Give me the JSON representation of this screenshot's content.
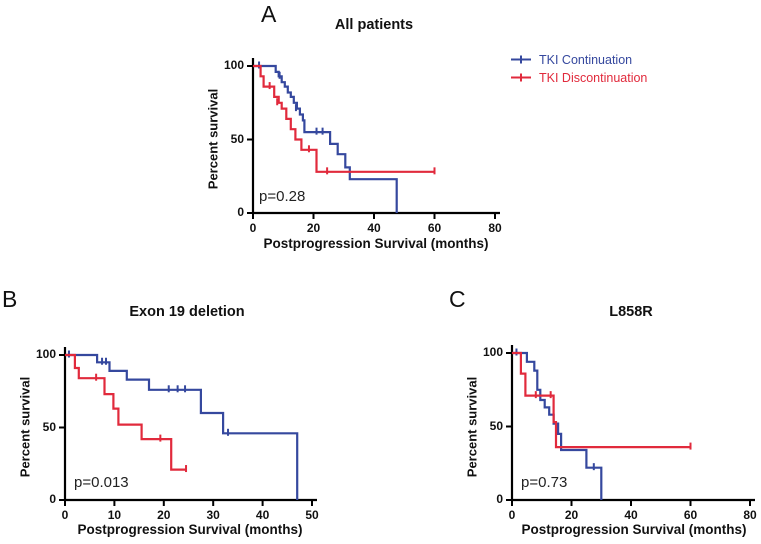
{
  "figure": {
    "colors": {
      "continuation": "#35489E",
      "discontinuation": "#E12A3C",
      "axis": "#000000",
      "background": "#ffffff"
    },
    "legend": {
      "items": [
        {
          "label": "TKI Continuation",
          "color": "#35489E",
          "marker": "km-line-with-censor-tick"
        },
        {
          "label": "TKI Discontinuation",
          "color": "#E12A3C",
          "marker": "km-line-with-censor-tick"
        }
      ]
    }
  },
  "chart_data": [
    {
      "type": "line",
      "subtype": "kaplan-meier-step",
      "panel_label": "A",
      "title": "All patients",
      "xlabel": "Postprogression Survival (months)",
      "ylabel": "Percent survival",
      "p_value": "p=0.28",
      "xlim": [
        0,
        80
      ],
      "ylim": [
        0,
        100
      ],
      "xticks": [
        0,
        20,
        40,
        60,
        80
      ],
      "yticks": [
        0,
        50,
        100
      ],
      "grid": false,
      "legend_position": "upper-right-outside",
      "series": [
        {
          "name": "TKI Continuation",
          "color": "#35489E",
          "steps": [
            [
              0,
              100
            ],
            [
              7.5,
              96
            ],
            [
              8.5,
              93
            ],
            [
              9.5,
              89
            ],
            [
              10.5,
              86
            ],
            [
              11.5,
              82
            ],
            [
              12.5,
              79
            ],
            [
              13.5,
              75
            ],
            [
              14.5,
              71
            ],
            [
              15.5,
              67
            ],
            [
              16.5,
              63
            ],
            [
              17,
              55
            ],
            [
              25.5,
              47
            ],
            [
              28,
              40
            ],
            [
              30.5,
              31
            ],
            [
              32,
              23
            ],
            [
              47.5,
              0
            ]
          ],
          "end": 47.5,
          "censors": [
            [
              2,
              100
            ],
            [
              8.8,
              93
            ],
            [
              14.2,
              71
            ],
            [
              21,
              55
            ],
            [
              23,
              55
            ]
          ]
        },
        {
          "name": "TKI Discontinuation",
          "color": "#E12A3C",
          "steps": [
            [
              0,
              100
            ],
            [
              2.5,
              93
            ],
            [
              3.5,
              86
            ],
            [
              7,
              79
            ],
            [
              8.5,
              75
            ],
            [
              9.5,
              71
            ],
            [
              11,
              64
            ],
            [
              12.5,
              57
            ],
            [
              14,
              50
            ],
            [
              16,
              43
            ],
            [
              21,
              28
            ]
          ],
          "end": 60,
          "censors": [
            [
              5.5,
              86
            ],
            [
              8,
              75
            ],
            [
              18.5,
              43
            ],
            [
              24.5,
              28
            ],
            [
              60,
              28
            ]
          ]
        }
      ]
    },
    {
      "type": "line",
      "subtype": "kaplan-meier-step",
      "panel_label": "B",
      "title": "Exon 19 deletion",
      "xlabel": "Postprogression Survival (months)",
      "ylabel": "Percent survival",
      "p_value": "p=0.013",
      "xlim": [
        0,
        50
      ],
      "ylim": [
        0,
        100
      ],
      "xticks": [
        0,
        10,
        20,
        30,
        40,
        50
      ],
      "yticks": [
        0,
        50,
        100
      ],
      "grid": false,
      "legend_position": "none",
      "series": [
        {
          "name": "TKI Continuation",
          "color": "#35489E",
          "steps": [
            [
              0,
              100
            ],
            [
              6.5,
              95
            ],
            [
              9,
              89
            ],
            [
              12.5,
              83
            ],
            [
              17,
              76
            ],
            [
              27.5,
              60
            ],
            [
              32,
              46
            ],
            [
              47,
              0
            ]
          ],
          "end": 47,
          "censors": [
            [
              0.8,
              100
            ],
            [
              7.5,
              95
            ],
            [
              8.3,
              95
            ],
            [
              21,
              76
            ],
            [
              22.8,
              76
            ],
            [
              24.3,
              76
            ],
            [
              33,
              46
            ]
          ]
        },
        {
          "name": "TKI Discontinuation",
          "color": "#E12A3C",
          "steps": [
            [
              0,
              100
            ],
            [
              2,
              91
            ],
            [
              2.8,
              84
            ],
            [
              8,
              73
            ],
            [
              9.8,
              63
            ],
            [
              10.8,
              52
            ],
            [
              15.5,
              42
            ],
            [
              21.5,
              21
            ]
          ],
          "end": 24.5,
          "censors": [
            [
              6.3,
              84
            ],
            [
              19.3,
              42
            ],
            [
              24.5,
              21
            ]
          ]
        }
      ]
    },
    {
      "type": "line",
      "subtype": "kaplan-meier-step",
      "panel_label": "C",
      "title": "L858R",
      "xlabel": "Postprogression Survival (months)",
      "ylabel": "Percent survival",
      "p_value": "p=0.73",
      "xlim": [
        0,
        80
      ],
      "ylim": [
        0,
        100
      ],
      "xticks": [
        0,
        20,
        40,
        60,
        80
      ],
      "yticks": [
        0,
        50,
        100
      ],
      "grid": false,
      "legend_position": "none",
      "series": [
        {
          "name": "TKI Continuation",
          "color": "#35489E",
          "steps": [
            [
              0,
              100
            ],
            [
              5,
              94
            ],
            [
              7.5,
              88
            ],
            [
              8.5,
              75
            ],
            [
              9.5,
              68
            ],
            [
              11,
              63
            ],
            [
              12.5,
              58
            ],
            [
              14,
              52
            ],
            [
              15.5,
              45
            ],
            [
              16.5,
              34
            ],
            [
              25,
              22
            ],
            [
              30,
              0
            ]
          ],
          "end": 30,
          "censors": [
            [
              1.5,
              100
            ],
            [
              27.5,
              22
            ]
          ]
        },
        {
          "name": "TKI Discontinuation",
          "color": "#E12A3C",
          "steps": [
            [
              0,
              100
            ],
            [
              3,
              86
            ],
            [
              4.5,
              71
            ],
            [
              14,
              53
            ],
            [
              14.8,
              36
            ]
          ],
          "end": 60,
          "censors": [
            [
              8,
              71
            ],
            [
              13,
              71
            ],
            [
              60,
              36
            ]
          ]
        }
      ]
    }
  ]
}
